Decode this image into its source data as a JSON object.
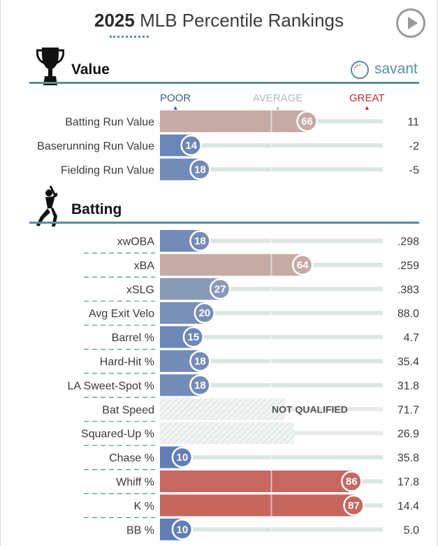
{
  "header": {
    "year": "2025",
    "title": "MLB Percentile Rankings"
  },
  "brand": {
    "name": "savant"
  },
  "scale": {
    "poor": "POOR",
    "average": "AVERAGE",
    "great": "GREAT"
  },
  "colors": {
    "teal": "#5a8f98",
    "poor": "#4a6fb4",
    "great": "#c9473b",
    "poor_scale": "#3a5a8c",
    "avg_scale": "#a8c0c6",
    "great_scale": "#b5302e"
  },
  "icons": {
    "value": "trophy-icon",
    "batting": "batter-icon",
    "play": "play-icon",
    "savant": "baseball-icon"
  },
  "chart_data": {
    "type": "bar",
    "xlim": [
      0,
      100
    ],
    "sections": [
      {
        "title": "Value",
        "metrics": [
          {
            "label": "Batting Run Value",
            "percentile": 66,
            "value": "11"
          },
          {
            "label": "Baserunning Run Value",
            "percentile": 14,
            "value": "-2"
          },
          {
            "label": "Fielding Run Value",
            "percentile": 18,
            "value": "-5"
          }
        ]
      },
      {
        "title": "Batting",
        "metrics": [
          {
            "label": "xwOBA",
            "percentile": 18,
            "value": ".298"
          },
          {
            "label": "xBA",
            "percentile": 64,
            "value": ".259"
          },
          {
            "label": "xSLG",
            "percentile": 27,
            "value": ".383"
          },
          {
            "label": "Avg Exit Velo",
            "percentile": 20,
            "value": "88.0"
          },
          {
            "label": "Barrel %",
            "percentile": 15,
            "value": "4.7"
          },
          {
            "label": "Hard-Hit %",
            "percentile": 18,
            "value": "35.4"
          },
          {
            "label": "LA Sweet-Spot %",
            "percentile": 18,
            "value": "31.8"
          },
          {
            "label": "Bat Speed",
            "percentile": null,
            "value": "71.7",
            "status": "NOT QUALIFIED"
          },
          {
            "label": "Squared-Up %",
            "percentile": null,
            "value": "26.9"
          },
          {
            "label": "Chase %",
            "percentile": 10,
            "value": "35.8"
          },
          {
            "label": "Whiff %",
            "percentile": 86,
            "value": "17.8"
          },
          {
            "label": "K %",
            "percentile": 87,
            "value": "14.4"
          },
          {
            "label": "BB %",
            "percentile": 10,
            "value": "5.0"
          }
        ]
      }
    ]
  }
}
